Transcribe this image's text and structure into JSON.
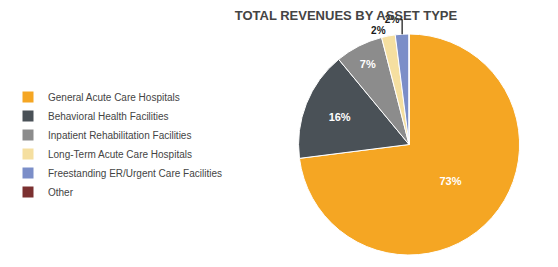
{
  "chart_data": {
    "type": "pie",
    "title": "TOTAL REVENUES BY ASSET TYPE",
    "categories": [
      "General Acute Care Hospitals",
      "Behavioral Health Facilities",
      "Inpatient Rehabilitation Facilities",
      "Long-Term Acute Care Hospitals",
      "Freestanding ER/Urgent Care Facilities",
      "Other"
    ],
    "values": [
      73,
      16,
      7,
      2,
      2,
      0.0001
    ],
    "value_labels": [
      "73%",
      "16%",
      "7%",
      "2%",
      "2%",
      null
    ],
    "data_labels": true,
    "colors": [
      "#F5A623",
      "#4A5157",
      "#8C8C8C",
      "#F5DFA0",
      "#7B8EC8",
      "#7B3030"
    ],
    "legend": "left"
  }
}
